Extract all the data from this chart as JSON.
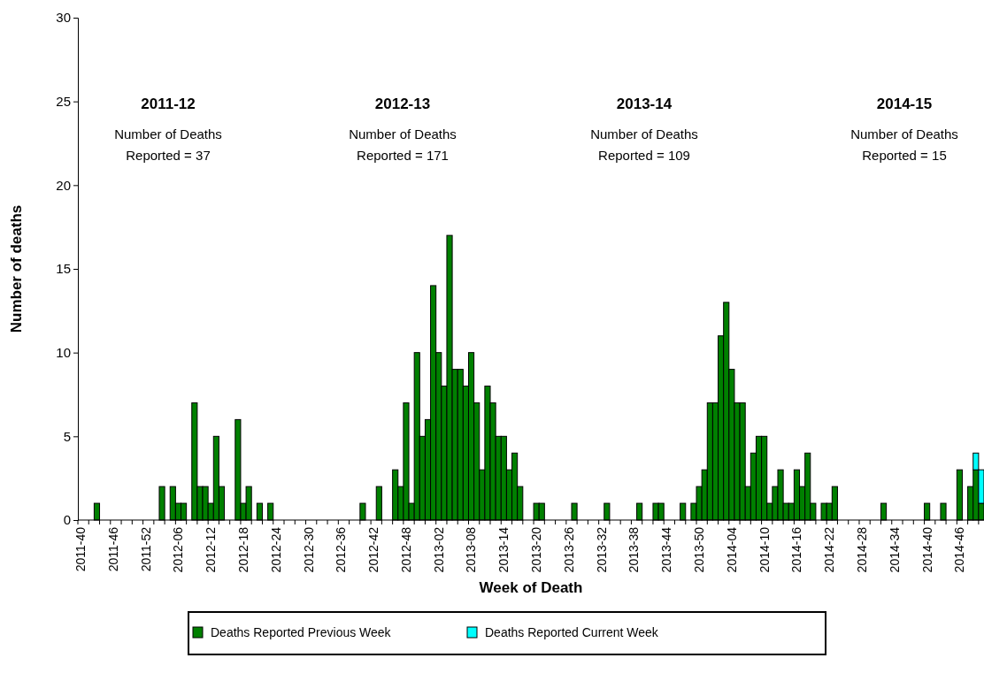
{
  "chart_data": {
    "type": "bar",
    "stacked": true,
    "xlabel": "Week of Death",
    "ylabel": "Number of deaths",
    "categories": [
      "2011-40",
      null,
      null,
      null,
      null,
      null,
      "2011-46",
      null,
      null,
      null,
      null,
      null,
      "2011-52",
      null,
      null,
      null,
      null,
      null,
      "2012-06",
      null,
      null,
      null,
      null,
      null,
      "2012-12",
      null,
      null,
      null,
      null,
      null,
      "2012-18",
      null,
      null,
      null,
      null,
      null,
      "2012-24",
      null,
      null,
      null,
      null,
      null,
      "2012-30",
      null,
      null,
      null,
      null,
      null,
      "2012-36",
      null,
      null,
      null,
      null,
      null,
      "2012-42",
      null,
      null,
      null,
      null,
      null,
      "2012-48",
      null,
      null,
      null,
      null,
      null,
      "2013-02",
      null,
      null,
      null,
      null,
      null,
      "2013-08",
      null,
      null,
      null,
      null,
      null,
      "2013-14",
      null,
      null,
      null,
      null,
      null,
      "2013-20",
      null,
      null,
      null,
      null,
      null,
      "2013-26",
      null,
      null,
      null,
      null,
      null,
      "2013-32",
      null,
      null,
      null,
      null,
      null,
      "2013-38",
      null,
      null,
      null,
      null,
      null,
      "2013-44",
      null,
      null,
      null,
      null,
      null,
      "2013-50",
      null,
      null,
      null,
      null,
      null,
      "2014-04",
      null,
      null,
      null,
      null,
      null,
      "2014-10",
      null,
      null,
      null,
      null,
      null,
      "2014-16",
      null,
      null,
      null,
      null,
      null,
      "2014-22",
      null,
      null,
      null,
      null,
      null,
      "2014-28",
      null,
      null,
      null,
      null,
      null,
      "2014-34",
      null,
      null,
      null,
      null,
      null,
      "2014-40",
      null,
      null,
      null,
      null,
      null,
      "2014-46",
      null,
      null,
      null,
      null
    ],
    "series": [
      {
        "name": "Deaths Reported Previous Week",
        "color": "#008000",
        "values": [
          0,
          0,
          0,
          1,
          0,
          0,
          0,
          0,
          0,
          0,
          0,
          0,
          0,
          0,
          0,
          2,
          0,
          2,
          1,
          1,
          0,
          7,
          2,
          2,
          1,
          5,
          2,
          0,
          0,
          6,
          1,
          2,
          0,
          1,
          0,
          1,
          0,
          0,
          0,
          0,
          0,
          0,
          0,
          0,
          0,
          0,
          0,
          0,
          0,
          0,
          0,
          0,
          1,
          0,
          0,
          2,
          0,
          0,
          3,
          2,
          7,
          1,
          10,
          5,
          6,
          14,
          10,
          8,
          17,
          9,
          9,
          8,
          10,
          7,
          3,
          8,
          7,
          5,
          5,
          3,
          4,
          2,
          0,
          0,
          1,
          1,
          0,
          0,
          0,
          0,
          0,
          1,
          0,
          0,
          0,
          0,
          0,
          1,
          0,
          0,
          0,
          0,
          0,
          1,
          0,
          0,
          1,
          1,
          0,
          0,
          0,
          1,
          0,
          1,
          2,
          3,
          7,
          7,
          11,
          13,
          9,
          7,
          7,
          2,
          4,
          5,
          5,
          1,
          2,
          3,
          1,
          1,
          3,
          2,
          4,
          1,
          0,
          1,
          1,
          2,
          0,
          0,
          0,
          0,
          0,
          0,
          0,
          0,
          1,
          0,
          0,
          0,
          0,
          0,
          0,
          0,
          1,
          0,
          0,
          1,
          0,
          0,
          3,
          0,
          2,
          3,
          1
        ]
      },
      {
        "name": "Deaths Reported Current Week",
        "color": "#00ffff",
        "values": [
          0,
          0,
          0,
          0,
          0,
          0,
          0,
          0,
          0,
          0,
          0,
          0,
          0,
          0,
          0,
          0,
          0,
          0,
          0,
          0,
          0,
          0,
          0,
          0,
          0,
          0,
          0,
          0,
          0,
          0,
          0,
          0,
          0,
          0,
          0,
          0,
          0,
          0,
          0,
          0,
          0,
          0,
          0,
          0,
          0,
          0,
          0,
          0,
          0,
          0,
          0,
          0,
          0,
          0,
          0,
          0,
          0,
          0,
          0,
          0,
          0,
          0,
          0,
          0,
          0,
          0,
          0,
          0,
          0,
          0,
          0,
          0,
          0,
          0,
          0,
          0,
          0,
          0,
          0,
          0,
          0,
          0,
          0,
          0,
          0,
          0,
          0,
          0,
          0,
          0,
          0,
          0,
          0,
          0,
          0,
          0,
          0,
          0,
          0,
          0,
          0,
          0,
          0,
          0,
          0,
          0,
          0,
          0,
          0,
          0,
          0,
          0,
          0,
          0,
          0,
          0,
          0,
          0,
          0,
          0,
          0,
          0,
          0,
          0,
          0,
          0,
          0,
          0,
          0,
          0,
          0,
          0,
          0,
          0,
          0,
          0,
          0,
          0,
          0,
          0,
          0,
          0,
          0,
          0,
          0,
          0,
          0,
          0,
          0,
          0,
          0,
          0,
          0,
          0,
          0,
          0,
          0,
          0,
          0,
          0,
          0,
          0,
          0,
          0,
          0,
          1,
          2
        ]
      }
    ],
    "ylim": [
      0,
      30
    ],
    "yticks": [
      0,
      5,
      10,
      15,
      20,
      25,
      30
    ],
    "legend": "bottom",
    "annotations": [
      "2011-12",
      "Number of Deaths\nReported = 37",
      "2012-13",
      "Number of Deaths\nReported = 171",
      "2013-14",
      "Number of Deaths\nReported = 109",
      "2014-15",
      "Number of Deaths\nReported = 15"
    ]
  }
}
